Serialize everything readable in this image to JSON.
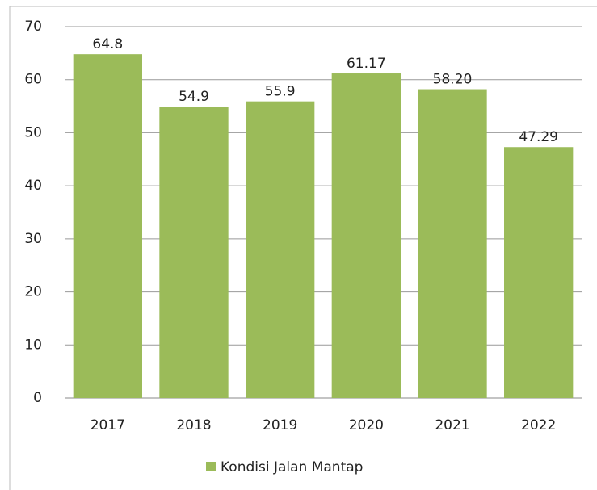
{
  "chart_data": {
    "type": "bar",
    "categories": [
      "2017",
      "2018",
      "2019",
      "2020",
      "2021",
      "2022"
    ],
    "series": [
      {
        "name": "Kondisi Jalan Mantap",
        "color": "#9bbb59",
        "values": [
          64.8,
          54.9,
          55.9,
          61.17,
          58.2,
          47.29
        ],
        "value_labels": [
          "64.8",
          "54.9",
          "55.9",
          "61.17",
          "58.20",
          "47.29"
        ]
      }
    ],
    "ylim": [
      0,
      70
    ],
    "yticks": [
      0,
      10,
      20,
      30,
      40,
      50,
      60,
      70
    ],
    "grid": true,
    "legend": "bottom"
  }
}
